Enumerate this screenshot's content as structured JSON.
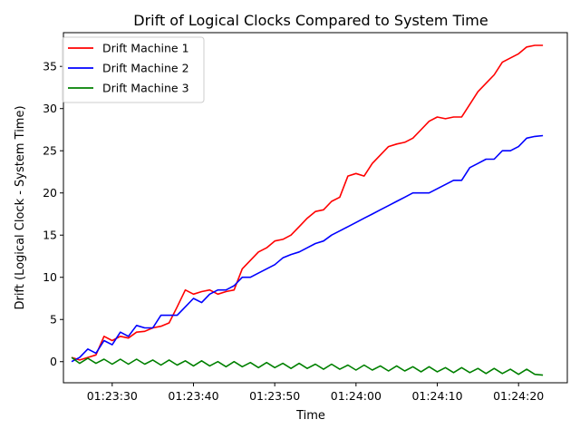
{
  "chart_data": {
    "type": "line",
    "title": "Drift of Logical Clocks Compared to System Time",
    "xlabel": "Time",
    "ylabel": "Drift (Logical Clock - System Time)",
    "x_unit": "seconds",
    "xlim": [
      "01:23:24",
      "01:24:26"
    ],
    "ylim": [
      -2.5,
      39
    ],
    "x_ticks": [
      {
        "value": "01:23:30",
        "label": "01:23:30"
      },
      {
        "value": "01:23:40",
        "label": "01:23:40"
      },
      {
        "value": "01:23:50",
        "label": "01:23:50"
      },
      {
        "value": "01:24:00",
        "label": "01:24:00"
      },
      {
        "value": "01:24:10",
        "label": "01:24:10"
      },
      {
        "value": "01:24:20",
        "label": "01:24:20"
      }
    ],
    "y_ticks": [
      0,
      5,
      10,
      15,
      20,
      25,
      30,
      35
    ],
    "grid": false,
    "legend_position": "top-left",
    "series": [
      {
        "name": "Drift Machine 1",
        "color": "#ff0000",
        "points": [
          [
            "01:23:25",
            0.5
          ],
          [
            "01:23:26",
            0.2
          ],
          [
            "01:23:27",
            0.5
          ],
          [
            "01:23:28",
            0.8
          ],
          [
            "01:23:29",
            3.0
          ],
          [
            "01:23:30",
            2.5
          ],
          [
            "01:23:31",
            3.0
          ],
          [
            "01:23:32",
            2.8
          ],
          [
            "01:23:33",
            3.5
          ],
          [
            "01:23:34",
            3.6
          ],
          [
            "01:23:35",
            4.0
          ],
          [
            "01:23:36",
            4.2
          ],
          [
            "01:23:37",
            4.6
          ],
          [
            "01:23:38",
            6.5
          ],
          [
            "01:23:39",
            8.5
          ],
          [
            "01:23:40",
            8.0
          ],
          [
            "01:23:41",
            8.3
          ],
          [
            "01:23:42",
            8.5
          ],
          [
            "01:23:43",
            8.0
          ],
          [
            "01:23:44",
            8.3
          ],
          [
            "01:23:45",
            8.5
          ],
          [
            "01:23:46",
            11.0
          ],
          [
            "01:23:47",
            12.0
          ],
          [
            "01:23:48",
            13.0
          ],
          [
            "01:23:49",
            13.5
          ],
          [
            "01:23:50",
            14.3
          ],
          [
            "01:23:51",
            14.5
          ],
          [
            "01:23:52",
            15.0
          ],
          [
            "01:23:53",
            16.0
          ],
          [
            "01:23:54",
            17.0
          ],
          [
            "01:23:55",
            17.8
          ],
          [
            "01:23:56",
            18.0
          ],
          [
            "01:23:57",
            19.0
          ],
          [
            "01:23:58",
            19.5
          ],
          [
            "01:23:59",
            22.0
          ],
          [
            "01:24:00",
            22.3
          ],
          [
            "01:24:01",
            22.0
          ],
          [
            "01:24:02",
            23.5
          ],
          [
            "01:24:03",
            24.5
          ],
          [
            "01:24:04",
            25.5
          ],
          [
            "01:24:05",
            25.8
          ],
          [
            "01:24:06",
            26.0
          ],
          [
            "01:24:07",
            26.5
          ],
          [
            "01:24:08",
            27.5
          ],
          [
            "01:24:09",
            28.5
          ],
          [
            "01:24:10",
            29.0
          ],
          [
            "01:24:11",
            28.8
          ],
          [
            "01:24:12",
            29.0
          ],
          [
            "01:24:13",
            29.0
          ],
          [
            "01:24:14",
            30.5
          ],
          [
            "01:24:15",
            32.0
          ],
          [
            "01:24:16",
            33.0
          ],
          [
            "01:24:17",
            34.0
          ],
          [
            "01:24:18",
            35.5
          ],
          [
            "01:24:19",
            36.0
          ],
          [
            "01:24:20",
            36.5
          ],
          [
            "01:24:21",
            37.3
          ],
          [
            "01:24:22",
            37.5
          ],
          [
            "01:24:23",
            37.5
          ]
        ]
      },
      {
        "name": "Drift Machine 2",
        "color": "#0000ff",
        "points": [
          [
            "01:23:25",
            0.0
          ],
          [
            "01:23:26",
            0.5
          ],
          [
            "01:23:27",
            1.5
          ],
          [
            "01:23:28",
            1.0
          ],
          [
            "01:23:29",
            2.5
          ],
          [
            "01:23:30",
            2.0
          ],
          [
            "01:23:31",
            3.5
          ],
          [
            "01:23:32",
            3.0
          ],
          [
            "01:23:33",
            4.3
          ],
          [
            "01:23:34",
            4.0
          ],
          [
            "01:23:35",
            4.0
          ],
          [
            "01:23:36",
            5.5
          ],
          [
            "01:23:37",
            5.5
          ],
          [
            "01:23:38",
            5.5
          ],
          [
            "01:23:39",
            6.5
          ],
          [
            "01:23:40",
            7.5
          ],
          [
            "01:23:41",
            7.0
          ],
          [
            "01:23:42",
            8.0
          ],
          [
            "01:23:43",
            8.5
          ],
          [
            "01:23:44",
            8.5
          ],
          [
            "01:23:45",
            9.0
          ],
          [
            "01:23:46",
            10.0
          ],
          [
            "01:23:47",
            10.0
          ],
          [
            "01:23:48",
            10.5
          ],
          [
            "01:23:49",
            11.0
          ],
          [
            "01:23:50",
            11.5
          ],
          [
            "01:23:51",
            12.3
          ],
          [
            "01:23:52",
            12.7
          ],
          [
            "01:23:53",
            13.0
          ],
          [
            "01:23:54",
            13.5
          ],
          [
            "01:23:55",
            14.0
          ],
          [
            "01:23:56",
            14.3
          ],
          [
            "01:23:57",
            15.0
          ],
          [
            "01:23:58",
            15.5
          ],
          [
            "01:23:59",
            16.0
          ],
          [
            "01:24:00",
            16.5
          ],
          [
            "01:24:01",
            17.0
          ],
          [
            "01:24:02",
            17.5
          ],
          [
            "01:24:03",
            18.0
          ],
          [
            "01:24:04",
            18.5
          ],
          [
            "01:24:05",
            19.0
          ],
          [
            "01:24:06",
            19.5
          ],
          [
            "01:24:07",
            20.0
          ],
          [
            "01:24:08",
            20.0
          ],
          [
            "01:24:09",
            20.0
          ],
          [
            "01:24:10",
            20.5
          ],
          [
            "01:24:11",
            21.0
          ],
          [
            "01:24:12",
            21.5
          ],
          [
            "01:24:13",
            21.5
          ],
          [
            "01:24:14",
            23.0
          ],
          [
            "01:24:15",
            23.5
          ],
          [
            "01:24:16",
            24.0
          ],
          [
            "01:24:17",
            24.0
          ],
          [
            "01:24:18",
            25.0
          ],
          [
            "01:24:19",
            25.0
          ],
          [
            "01:24:20",
            25.5
          ],
          [
            "01:24:21",
            26.5
          ],
          [
            "01:24:22",
            26.7
          ],
          [
            "01:24:23",
            26.8
          ]
        ]
      },
      {
        "name": "Drift Machine 3",
        "color": "#008000",
        "points": [
          [
            "01:23:25",
            0.5
          ],
          [
            "01:23:26",
            -0.2
          ],
          [
            "01:23:27",
            0.4
          ],
          [
            "01:23:28",
            -0.2
          ],
          [
            "01:23:29",
            0.3
          ],
          [
            "01:23:30",
            -0.3
          ],
          [
            "01:23:31",
            0.3
          ],
          [
            "01:23:32",
            -0.3
          ],
          [
            "01:23:33",
            0.3
          ],
          [
            "01:23:34",
            -0.3
          ],
          [
            "01:23:35",
            0.2
          ],
          [
            "01:23:36",
            -0.4
          ],
          [
            "01:23:37",
            0.2
          ],
          [
            "01:23:38",
            -0.4
          ],
          [
            "01:23:39",
            0.1
          ],
          [
            "01:23:40",
            -0.5
          ],
          [
            "01:23:41",
            0.1
          ],
          [
            "01:23:42",
            -0.5
          ],
          [
            "01:23:43",
            0.0
          ],
          [
            "01:23:44",
            -0.6
          ],
          [
            "01:23:45",
            0.0
          ],
          [
            "01:23:46",
            -0.6
          ],
          [
            "01:23:47",
            -0.1
          ],
          [
            "01:23:48",
            -0.7
          ],
          [
            "01:23:49",
            -0.1
          ],
          [
            "01:23:50",
            -0.7
          ],
          [
            "01:23:51",
            -0.2
          ],
          [
            "01:23:52",
            -0.8
          ],
          [
            "01:23:53",
            -0.2
          ],
          [
            "01:23:54",
            -0.8
          ],
          [
            "01:23:55",
            -0.3
          ],
          [
            "01:23:56",
            -0.9
          ],
          [
            "01:23:57",
            -0.3
          ],
          [
            "01:23:58",
            -0.9
          ],
          [
            "01:23:59",
            -0.4
          ],
          [
            "01:24:00",
            -1.0
          ],
          [
            "01:24:01",
            -0.4
          ],
          [
            "01:24:02",
            -1.0
          ],
          [
            "01:24:03",
            -0.5
          ],
          [
            "01:24:04",
            -1.1
          ],
          [
            "01:24:05",
            -0.5
          ],
          [
            "01:24:06",
            -1.1
          ],
          [
            "01:24:07",
            -0.6
          ],
          [
            "01:24:08",
            -1.2
          ],
          [
            "01:24:09",
            -0.6
          ],
          [
            "01:24:10",
            -1.2
          ],
          [
            "01:24:11",
            -0.7
          ],
          [
            "01:24:12",
            -1.3
          ],
          [
            "01:24:13",
            -0.7
          ],
          [
            "01:24:14",
            -1.3
          ],
          [
            "01:24:15",
            -0.8
          ],
          [
            "01:24:16",
            -1.4
          ],
          [
            "01:24:17",
            -0.8
          ],
          [
            "01:24:18",
            -1.4
          ],
          [
            "01:24:19",
            -0.9
          ],
          [
            "01:24:20",
            -1.5
          ],
          [
            "01:24:21",
            -0.9
          ],
          [
            "01:24:22",
            -1.5
          ],
          [
            "01:24:23",
            -1.6
          ]
        ]
      }
    ]
  }
}
